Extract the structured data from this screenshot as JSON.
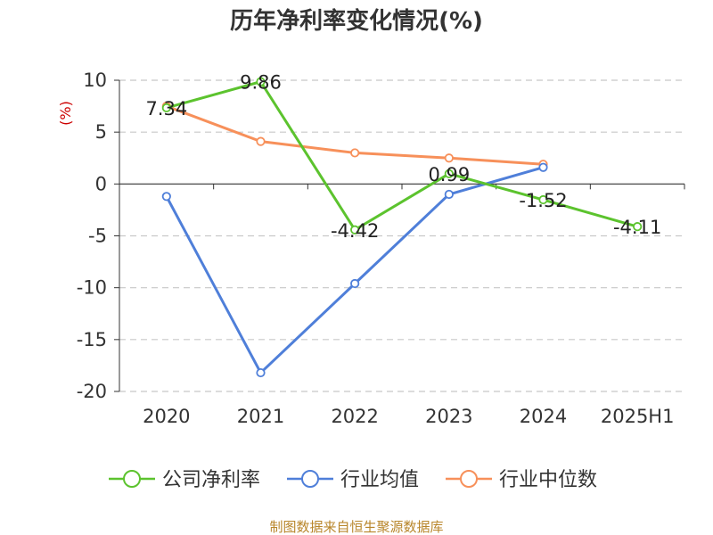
{
  "chart_data": {
    "type": "line",
    "title": "历年净利率变化情况(%)",
    "unit_label": "(%)",
    "categories": [
      "2020",
      "2021",
      "2022",
      "2023",
      "2024",
      "2025H1"
    ],
    "ylim": [
      -20,
      10
    ],
    "yticks": [
      10,
      5,
      0,
      -5,
      -10,
      -15,
      -20
    ],
    "grid": true,
    "legend_position": "bottom",
    "series": [
      {
        "name": "公司净利率",
        "color": "#5cc32e",
        "values": [
          7.34,
          9.86,
          -4.42,
          0.99,
          -1.52,
          -4.11
        ],
        "labels": [
          "7.34",
          "9.86",
          "-4.42",
          "0.99",
          "-1.52",
          "-4.11"
        ]
      },
      {
        "name": "行业均值",
        "color": "#4f7fd9",
        "values": [
          -1.2,
          -18.2,
          -9.6,
          -1.0,
          1.6,
          null
        ]
      },
      {
        "name": "行业中位数",
        "color": "#f7905a",
        "values": [
          7.5,
          4.1,
          3.0,
          2.5,
          1.9,
          null
        ]
      }
    ],
    "source": "制图数据来自恒生聚源数据库"
  }
}
